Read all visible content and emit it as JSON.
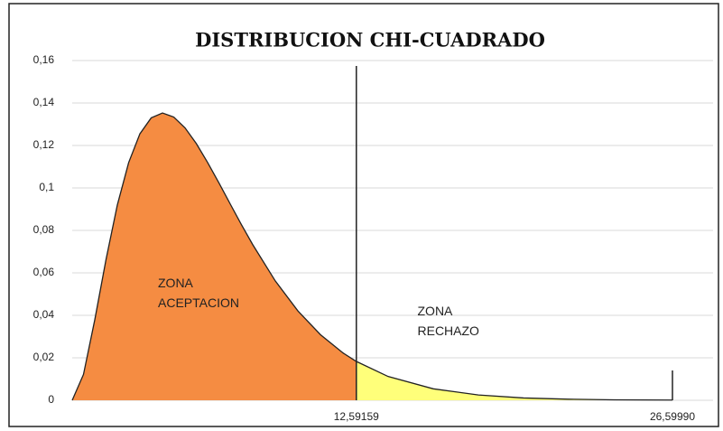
{
  "chart_data": {
    "type": "area",
    "title": "DISTRIBUCION CHI-CUADRADO",
    "x": [
      0,
      0.5,
      1,
      1.5,
      2,
      2.5,
      3,
      3.5,
      4,
      4.5,
      5,
      5.5,
      6,
      6.5,
      7,
      7.5,
      8,
      9,
      10,
      11,
      12,
      12.59159,
      14,
      16,
      18,
      20,
      22,
      24,
      26.5999
    ],
    "values": [
      0,
      0.0122,
      0.0379,
      0.0664,
      0.092,
      0.1119,
      0.1255,
      0.133,
      0.1353,
      0.1334,
      0.1283,
      0.1209,
      0.112,
      0.1024,
      0.0925,
      0.0827,
      0.0733,
      0.0562,
      0.0421,
      0.0309,
      0.0223,
      0.0183,
      0.0112,
      0.0054,
      0.0025,
      0.0011,
      0.0005,
      0.0002,
      0.0001
    ],
    "colors": [
      "#f58c42",
      "#ffff7a"
    ],
    "xlim": [
      0,
      28.4
    ],
    "xticks": [
      {
        "value": 12.59159,
        "label": "12,59159"
      },
      {
        "value": 26.5999,
        "label": "26,59990"
      }
    ],
    "ylim": [
      0,
      0.16
    ],
    "yticks": [
      0,
      {
        "value": 0.02,
        "label": "0,02"
      },
      {
        "value": 0.04,
        "label": "0,04"
      },
      {
        "value": 0.06,
        "label": "0,06"
      },
      {
        "value": 0.08,
        "label": "0,08"
      },
      {
        "value": 0.1,
        "label": "0,1"
      },
      {
        "value": 0.12,
        "label": "0,12"
      },
      {
        "value": 0.14,
        "label": "0,14"
      },
      {
        "value": 0.16,
        "label": "0,16"
      }
    ],
    "grid": true,
    "annotations": [
      {
        "lines": [
          "ZONA",
          "ACEPTACION"
        ],
        "x": 3.8,
        "y": 0.05
      },
      {
        "lines": [
          "ZONA",
          "RECHAZO"
        ],
        "x": 15.3,
        "y": 0.037
      }
    ]
  }
}
